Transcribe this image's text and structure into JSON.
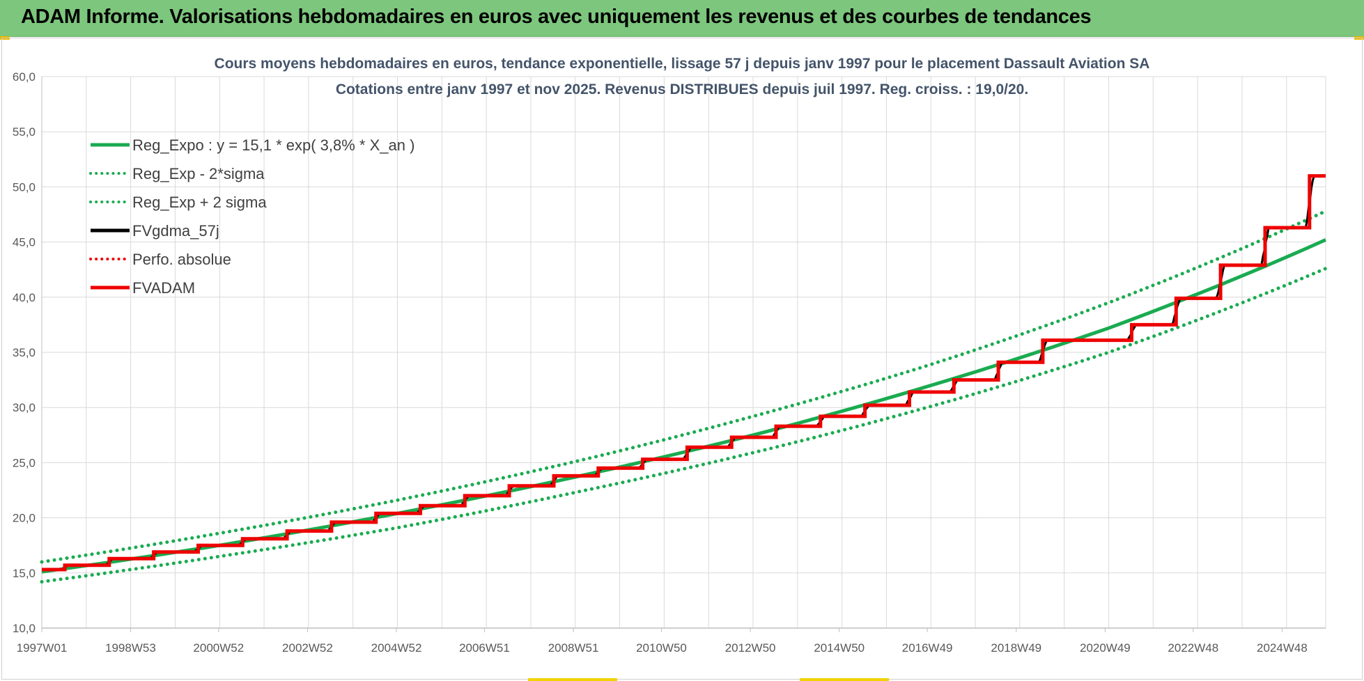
{
  "header": {
    "title": "ADAM Informe. Valorisations hebdomadaires en euros avec uniquement les revenus et des courbes de tendances"
  },
  "colors": {
    "header_bg": "#7dc67d",
    "regression": "#1aab50",
    "fvgdma": "#000000",
    "fvadam": "#ee0000",
    "perfo": "#ee0000",
    "grid": "#d9d9d9"
  },
  "chart_data": {
    "type": "line",
    "title": [
      "Cours moyens hebdomadaires en euros, tendance exponentielle, lissage 57 j depuis janv 1997 pour le placement Dassault Aviation SA",
      "Cotations entre janv 1997 et nov 2025. Revenus DISTRIBUES depuis juil 1997. Reg. croiss. : 19,0/20."
    ],
    "x_range": [
      "1997W01",
      "2025W47"
    ],
    "x_ticks": [
      "1997W01",
      "1998W53",
      "2000W52",
      "2002W52",
      "2004W52",
      "2006W51",
      "2008W51",
      "2010W50",
      "2012W50",
      "2014W50",
      "2016W49",
      "2018W49",
      "2020W49",
      "2022W48",
      "2024W48"
    ],
    "ylim": [
      10,
      60
    ],
    "y_ticks": [
      "10,0",
      "15,0",
      "20,0",
      "25,0",
      "30,0",
      "35,0",
      "40,0",
      "45,0",
      "50,0",
      "55,0",
      "60,0"
    ],
    "grid": true,
    "legend_position": "top-left",
    "legend": [
      {
        "label": "Reg_Expo : y = 15,1 * exp( 3,8% *  X_an )",
        "color": "#1aab50",
        "style": "solid"
      },
      {
        "label": "Reg_Exp - 2*sigma",
        "color": "#1aab50",
        "style": "dotted"
      },
      {
        "label": "Reg_Exp + 2 sigma",
        "color": "#1aab50",
        "style": "dotted"
      },
      {
        "label": "FVgdma_57j",
        "color": "#000000",
        "style": "solid"
      },
      {
        "label": "Perfo. absolue",
        "color": "#ee0000",
        "style": "dotted"
      },
      {
        "label": "FVADAM",
        "color": "#ee0000",
        "style": "solid"
      }
    ],
    "series": [
      {
        "name": "Reg_Expo : y = 15,1 * exp( 3,8% *  X_an )",
        "x": [
          "1997W01",
          "2001W01",
          "2005W01",
          "2009W01",
          "2013W01",
          "2017W01",
          "2021W01",
          "2025W47"
        ],
        "values": [
          15.1,
          17.5,
          20.4,
          23.7,
          27.5,
          32.0,
          37.2,
          45.2
        ]
      },
      {
        "name": "Reg_Exp - 2*sigma",
        "x": [
          "1997W01",
          "2001W01",
          "2005W01",
          "2009W01",
          "2013W01",
          "2017W01",
          "2021W01",
          "2025W47"
        ],
        "values": [
          14.2,
          16.5,
          19.1,
          22.3,
          25.9,
          30.1,
          35.0,
          42.6
        ]
      },
      {
        "name": "Reg_Exp + 2 sigma",
        "x": [
          "1997W01",
          "2001W01",
          "2005W01",
          "2009W01",
          "2013W01",
          "2017W01",
          "2021W01",
          "2025W47"
        ],
        "values": [
          16.0,
          18.6,
          21.6,
          25.1,
          29.2,
          33.9,
          39.5,
          47.8
        ]
      },
      {
        "name": "FVADAM",
        "step": true,
        "x": [
          "1997W01",
          "1997W28",
          "1998W28",
          "1999W28",
          "2000W28",
          "2001W28",
          "2002W28",
          "2003W28",
          "2004W28",
          "2005W28",
          "2006W28",
          "2007W28",
          "2008W28",
          "2009W28",
          "2010W28",
          "2011W28",
          "2012W28",
          "2013W28",
          "2014W28",
          "2015W28",
          "2016W28",
          "2017W28",
          "2018W28",
          "2019W28",
          "2020W28",
          "2021W28",
          "2022W28",
          "2023W28",
          "2024W28",
          "2025W28",
          "2025W47"
        ],
        "values": [
          15.3,
          15.7,
          16.3,
          16.9,
          17.5,
          18.1,
          18.8,
          19.6,
          20.4,
          21.1,
          22.0,
          22.9,
          23.8,
          24.5,
          25.3,
          26.4,
          27.3,
          28.3,
          29.2,
          30.2,
          31.4,
          32.5,
          34.1,
          36.1,
          36.1,
          37.5,
          39.9,
          42.9,
          46.3,
          51.0,
          51.0
        ]
      },
      {
        "name": "FVgdma_57j",
        "smoothed_of": "FVADAM",
        "smoothing_days": 57
      }
    ]
  }
}
